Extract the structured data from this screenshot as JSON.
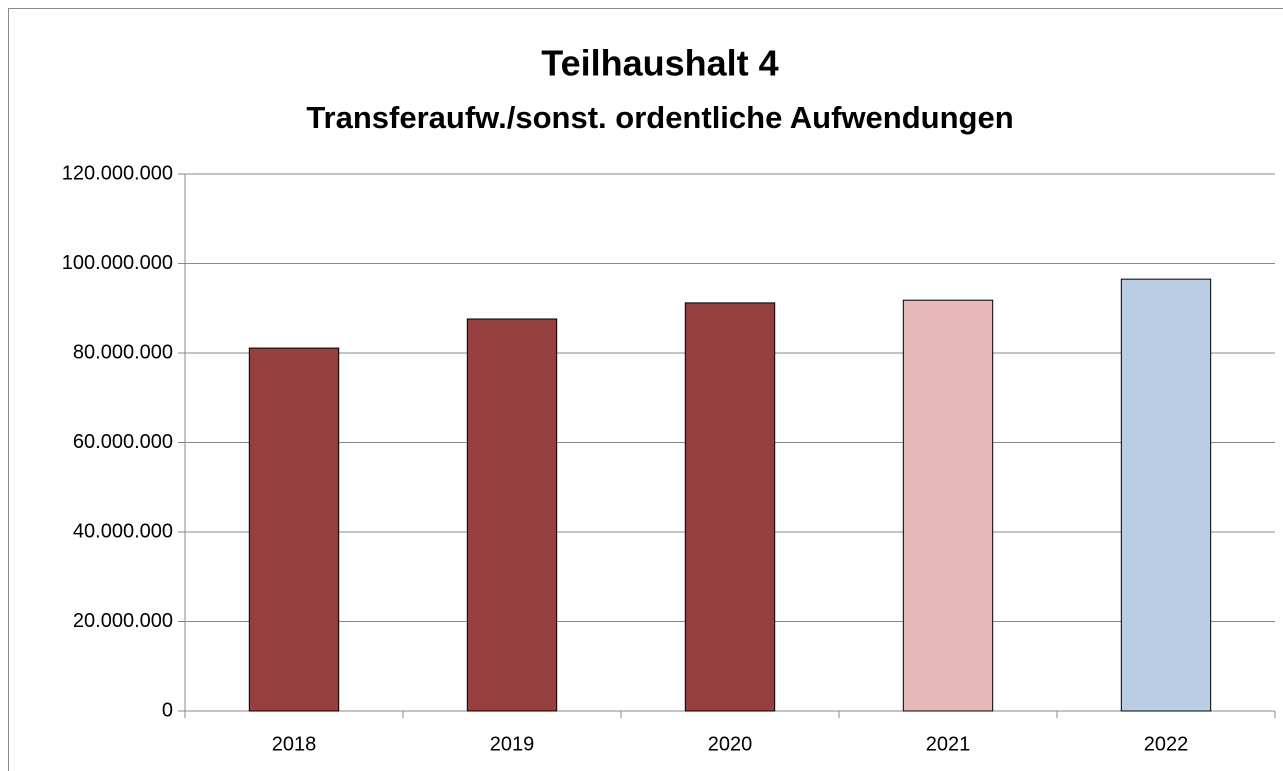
{
  "chart_data": {
    "type": "bar",
    "title": "Teilhaushalt 4",
    "subtitle": "Transferaufw./sonst. ordentliche Aufwendungen",
    "categories": [
      "2018",
      "2019",
      "2020",
      "2021",
      "2022"
    ],
    "values": [
      81100000,
      87600000,
      91200000,
      91800000,
      96500000
    ],
    "colors": [
      "#963f3e",
      "#963f3e",
      "#963f3e",
      "#e6b9b8",
      "#b9cde5"
    ],
    "ylim": [
      0,
      120000000
    ],
    "yticks": [
      0,
      {
        "value": 20000000,
        "label": "20.000.000"
      },
      {
        "value": 40000000,
        "label": "40.000.000"
      },
      {
        "value": 60000000,
        "label": "60.000.000"
      },
      {
        "value": 80000000,
        "label": "80.000.000"
      },
      {
        "value": 100000000,
        "label": "100.000.000"
      },
      {
        "value": 120000000,
        "label": "120.000.000"
      }
    ],
    "grid": true
  }
}
